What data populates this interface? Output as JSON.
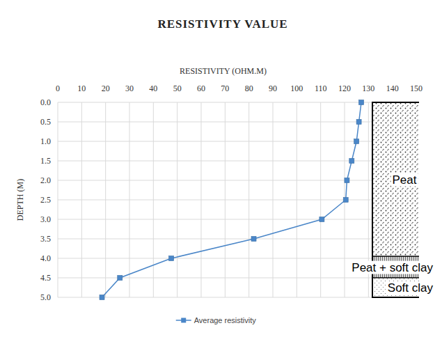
{
  "chart_data": {
    "type": "line",
    "title": "RESISTIVITY VALUE",
    "x_label": "RESISTIVITY (OHM.M)",
    "y_label": "DEPTH (M)",
    "orientation": "horizontal",
    "y": [
      0,
      0.5,
      1.0,
      1.5,
      2.0,
      2.5,
      3.0,
      3.5,
      4.0,
      4.5,
      5.0
    ],
    "series": [
      {
        "name": "Average resistivity",
        "color": "#4a86c8",
        "marker": "square",
        "line_style": "solid",
        "values": [
          127,
          126,
          125,
          123,
          121,
          120.5,
          110.5,
          82,
          47.5,
          26,
          18.5
        ]
      }
    ],
    "xlim": [
      0,
      150
    ],
    "xticks": [
      0,
      10,
      20,
      30,
      40,
      50,
      60,
      70,
      80,
      90,
      100,
      110,
      120,
      130,
      140,
      150
    ],
    "ylim": [
      0,
      5
    ],
    "yticks": [
      {
        "value": 0,
        "label": "0.0"
      },
      0.5,
      {
        "value": 1,
        "label": "1.0"
      },
      1.5,
      {
        "value": 2,
        "label": "2.0"
      },
      2.5,
      {
        "value": 3,
        "label": "3.0"
      },
      3.5,
      {
        "value": 4,
        "label": "4.0"
      },
      4.5,
      {
        "value": 5,
        "label": "5.0"
      }
    ],
    "grid": true,
    "legend": "bottom",
    "layers": [
      {
        "label": "Peat",
        "top": 0,
        "bottom": 3.95
      },
      {
        "label": "Peat + soft clay",
        "top": 3.95,
        "bottom": 4.5
      },
      {
        "label": "Soft clay",
        "top": 4.5,
        "bottom": 5
      }
    ]
  }
}
